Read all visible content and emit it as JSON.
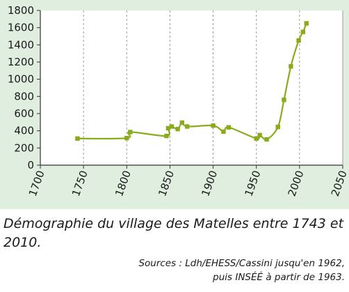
{
  "chart_data": {
    "type": "line",
    "title": "",
    "xlabel": "",
    "ylabel": "",
    "xlim": [
      1700,
      2050
    ],
    "ylim": [
      0,
      1800
    ],
    "x_ticks": [
      "1700",
      "1750",
      "1800",
      "1850",
      "1900",
      "1950",
      "2000",
      "2050"
    ],
    "y_ticks": [
      "0",
      "200",
      "400",
      "600",
      "800",
      "1000",
      "1200",
      "1400",
      "1600",
      "1800"
    ],
    "grid": "vertical dashed",
    "legend": "none",
    "series": [
      {
        "color": "#8aab1a",
        "marker": "square",
        "points": [
          [
            1743,
            310
          ],
          [
            1800,
            315
          ],
          [
            1804,
            385
          ],
          [
            1846,
            340
          ],
          [
            1848,
            430
          ],
          [
            1852,
            450
          ],
          [
            1859,
            420
          ],
          [
            1864,
            495
          ],
          [
            1870,
            450
          ],
          [
            1900,
            460
          ],
          [
            1912,
            390
          ],
          [
            1918,
            440
          ],
          [
            1950,
            310
          ],
          [
            1954,
            350
          ],
          [
            1962,
            300
          ],
          [
            1975,
            445
          ],
          [
            1982,
            760
          ],
          [
            1990,
            1150
          ],
          [
            1999,
            1450
          ],
          [
            2004,
            1550
          ],
          [
            2008,
            1650
          ]
        ]
      }
    ]
  },
  "caption": "Démographie du village des Matelles entre 1743 et 2010.",
  "sources": {
    "line1": "Sources : Ldh/EHESS/Cassini jusqu'en 1962,",
    "line2": "puis INSÉÉ à partir de 1963."
  }
}
